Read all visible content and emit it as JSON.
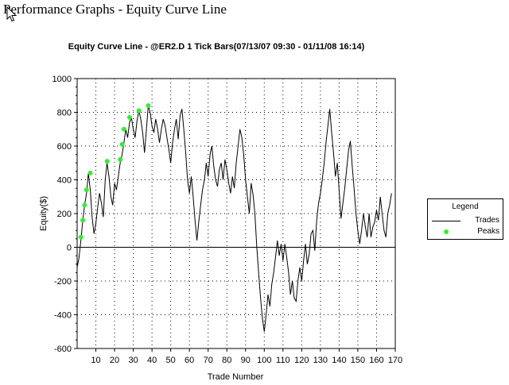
{
  "window": {
    "title": "Performance Graphs - Equity Curve Line"
  },
  "colors": {
    "trades_line": "#000000",
    "peaks_marker": "#33ee33",
    "grid": "#000000",
    "background": "#ffffff"
  },
  "icons": {
    "cursor": "cursor-icon"
  },
  "legend": {
    "title": "Legend",
    "placement": "right",
    "items": [
      {
        "label": "Trades"
      },
      {
        "label": "Peaks"
      }
    ]
  },
  "chart_data": {
    "type": "line",
    "title": "Equity Curve Line - @ER2.D 1 Tick Bars(07/13/07 09:30 - 01/11/08 16:14)",
    "xlabel": "Trade Number",
    "ylabel": "Equity($)",
    "xlim": [
      0,
      170
    ],
    "ylim": [
      -600,
      1000
    ],
    "xticks": [
      10,
      20,
      30,
      40,
      50,
      60,
      70,
      80,
      90,
      100,
      110,
      120,
      130,
      140,
      150,
      160,
      170
    ],
    "yticks": [
      -600,
      -400,
      -200,
      0,
      200,
      400,
      600,
      800,
      1000
    ],
    "grid": true,
    "series": [
      {
        "name": "Trades",
        "style": "line",
        "points": [
          [
            0,
            -120
          ],
          [
            1,
            -60
          ],
          [
            2,
            40
          ],
          [
            3,
            160
          ],
          [
            4,
            250
          ],
          [
            5,
            320
          ],
          [
            6,
            440
          ],
          [
            7,
            340
          ],
          [
            8,
            180
          ],
          [
            9,
            80
          ],
          [
            10,
            140
          ],
          [
            11,
            240
          ],
          [
            12,
            320
          ],
          [
            13,
            260
          ],
          [
            14,
            180
          ],
          [
            15,
            400
          ],
          [
            16,
            500
          ],
          [
            17,
            420
          ],
          [
            18,
            300
          ],
          [
            19,
            250
          ],
          [
            20,
            380
          ],
          [
            21,
            340
          ],
          [
            22,
            420
          ],
          [
            23,
            500
          ],
          [
            24,
            550
          ],
          [
            25,
            620
          ],
          [
            26,
            700
          ],
          [
            27,
            650
          ],
          [
            28,
            740
          ],
          [
            29,
            770
          ],
          [
            30,
            700
          ],
          [
            31,
            650
          ],
          [
            32,
            750
          ],
          [
            33,
            810
          ],
          [
            34,
            760
          ],
          [
            35,
            680
          ],
          [
            36,
            560
          ],
          [
            37,
            700
          ],
          [
            38,
            840
          ],
          [
            39,
            800
          ],
          [
            40,
            720
          ],
          [
            41,
            680
          ],
          [
            42,
            760
          ],
          [
            43,
            700
          ],
          [
            44,
            620
          ],
          [
            45,
            700
          ],
          [
            46,
            760
          ],
          [
            47,
            720
          ],
          [
            48,
            650
          ],
          [
            49,
            580
          ],
          [
            50,
            500
          ],
          [
            51,
            620
          ],
          [
            52,
            700
          ],
          [
            53,
            760
          ],
          [
            54,
            640
          ],
          [
            55,
            780
          ],
          [
            56,
            820
          ],
          [
            57,
            700
          ],
          [
            58,
            560
          ],
          [
            59,
            400
          ],
          [
            60,
            320
          ],
          [
            61,
            420
          ],
          [
            62,
            300
          ],
          [
            63,
            160
          ],
          [
            64,
            40
          ],
          [
            65,
            150
          ],
          [
            66,
            250
          ],
          [
            67,
            340
          ],
          [
            68,
            400
          ],
          [
            69,
            500
          ],
          [
            70,
            420
          ],
          [
            71,
            550
          ],
          [
            72,
            600
          ],
          [
            73,
            480
          ],
          [
            74,
            400
          ],
          [
            75,
            360
          ],
          [
            76,
            460
          ],
          [
            77,
            500
          ],
          [
            78,
            400
          ],
          [
            79,
            520
          ],
          [
            80,
            460
          ],
          [
            81,
            380
          ],
          [
            82,
            320
          ],
          [
            83,
            420
          ],
          [
            84,
            350
          ],
          [
            85,
            500
          ],
          [
            86,
            600
          ],
          [
            87,
            700
          ],
          [
            88,
            650
          ],
          [
            89,
            550
          ],
          [
            90,
            400
          ],
          [
            91,
            300
          ],
          [
            92,
            200
          ],
          [
            93,
            380
          ],
          [
            94,
            310
          ],
          [
            95,
            200
          ],
          [
            96,
            0
          ],
          [
            97,
            -150
          ],
          [
            98,
            -300
          ],
          [
            99,
            -420
          ],
          [
            100,
            -500
          ],
          [
            101,
            -400
          ],
          [
            102,
            -280
          ],
          [
            103,
            -350
          ],
          [
            104,
            -220
          ],
          [
            105,
            -150
          ],
          [
            106,
            -60
          ],
          [
            107,
            40
          ],
          [
            108,
            -50
          ],
          [
            109,
            20
          ],
          [
            110,
            -80
          ],
          [
            111,
            20
          ],
          [
            112,
            -60
          ],
          [
            113,
            -150
          ],
          [
            114,
            -280
          ],
          [
            115,
            -200
          ],
          [
            116,
            -300
          ],
          [
            117,
            -320
          ],
          [
            118,
            -200
          ],
          [
            119,
            -120
          ],
          [
            120,
            -200
          ],
          [
            121,
            -80
          ],
          [
            122,
            20
          ],
          [
            123,
            -100
          ],
          [
            124,
            -40
          ],
          [
            125,
            80
          ],
          [
            126,
            100
          ],
          [
            127,
            -20
          ],
          [
            128,
            160
          ],
          [
            129,
            260
          ],
          [
            130,
            320
          ],
          [
            131,
            400
          ],
          [
            132,
            500
          ],
          [
            133,
            620
          ],
          [
            134,
            720
          ],
          [
            135,
            820
          ],
          [
            136,
            680
          ],
          [
            137,
            560
          ],
          [
            138,
            420
          ],
          [
            139,
            500
          ],
          [
            140,
            340
          ],
          [
            141,
            170
          ],
          [
            142,
            260
          ],
          [
            143,
            350
          ],
          [
            144,
            460
          ],
          [
            145,
            570
          ],
          [
            146,
            630
          ],
          [
            147,
            480
          ],
          [
            148,
            350
          ],
          [
            149,
            200
          ],
          [
            150,
            100
          ],
          [
            151,
            20
          ],
          [
            152,
            100
          ],
          [
            153,
            200
          ],
          [
            154,
            120
          ],
          [
            155,
            60
          ],
          [
            156,
            200
          ],
          [
            157,
            60
          ],
          [
            158,
            120
          ],
          [
            159,
            150
          ],
          [
            160,
            220
          ],
          [
            161,
            160
          ],
          [
            162,
            300
          ],
          [
            163,
            200
          ],
          [
            164,
            100
          ],
          [
            165,
            60
          ],
          [
            166,
            200
          ],
          [
            167,
            250
          ],
          [
            168,
            320
          ]
        ]
      },
      {
        "name": "Peaks",
        "style": "markers",
        "points": [
          [
            2,
            60
          ],
          [
            3,
            160
          ],
          [
            4,
            250
          ],
          [
            5,
            340
          ],
          [
            7,
            440
          ],
          [
            16,
            510
          ],
          [
            23,
            520
          ],
          [
            24,
            610
          ],
          [
            25,
            700
          ],
          [
            28,
            770
          ],
          [
            33,
            810
          ],
          [
            38,
            840
          ]
        ]
      }
    ]
  }
}
